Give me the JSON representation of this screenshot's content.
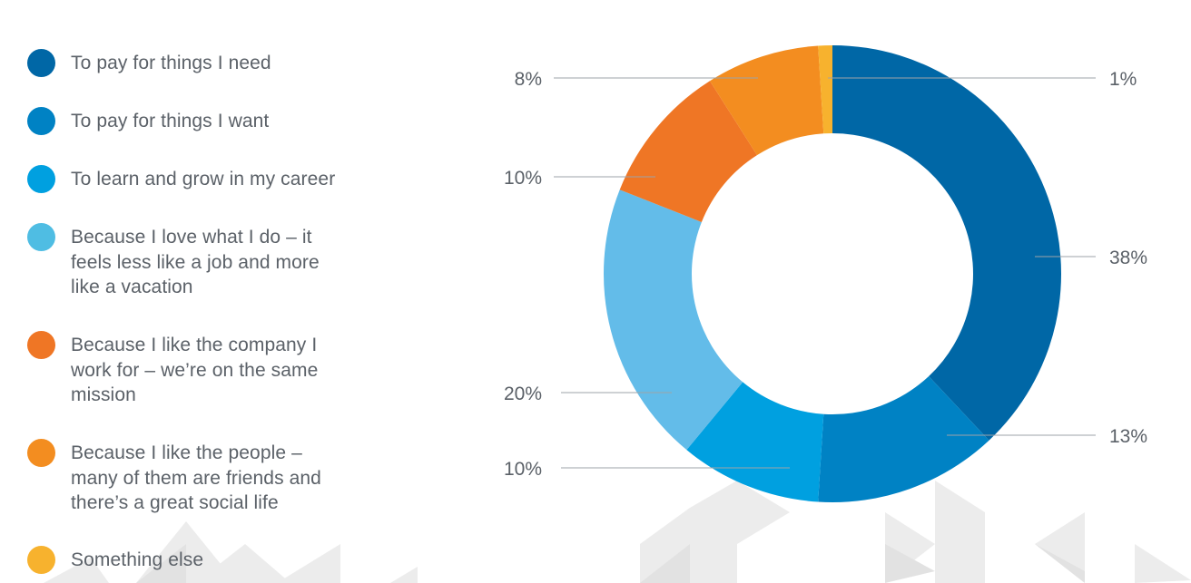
{
  "chart_data": {
    "type": "pie",
    "donut": true,
    "categories": [
      "To pay for things I need",
      "To pay for things I want",
      "To learn and grow in my career",
      "Because I love what I do – it feels less like a job and more like a vacation",
      "Because I like the company I work for – we're on the same mission",
      "Because I like the people – many of them are friends and there's a great social life",
      "Something else"
    ],
    "values": [
      38,
      13,
      10,
      20,
      10,
      8,
      1
    ],
    "labels": [
      "38%",
      "13%",
      "10%",
      "20%",
      "10%",
      "8%",
      "1%"
    ],
    "colors": [
      "#0067a6",
      "#0082c4",
      "#00a0e0",
      "#63bce9",
      "#ef7625",
      "#f38d20",
      "#f7b22e"
    ],
    "legend_colors": [
      "#0067a6",
      "#0082c4",
      "#00a0e0",
      "#4fbde3",
      "#ef7625",
      "#f38d20",
      "#f7b22e"
    ],
    "legend_position": "left"
  }
}
